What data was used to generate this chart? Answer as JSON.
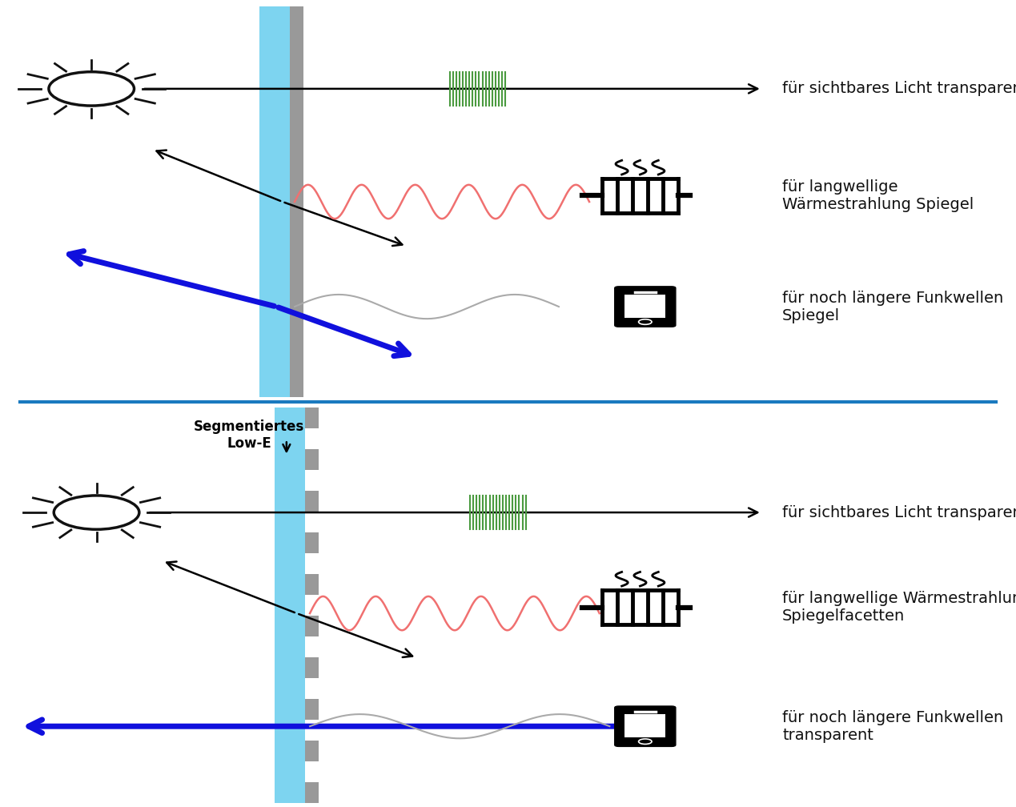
{
  "bg_color": "#ffffff",
  "divider_color": "#1a7abf",
  "glass_color": "#7dd4f0",
  "glass_edge_color": "#999999",
  "sun_color": "#111111",
  "wave_green_color": "#4a9a3f",
  "wave_red_color": "#f07070",
  "wave_gray_color": "#aaaaaa",
  "arrow_blue_color": "#1010dd",
  "text_color": "#111111",
  "label_sichtbar": "für sichtbares Licht transparent",
  "label_waerme1": "für langwellige\nWärmestrahlung Spiegel",
  "label_funk1": "für noch längere Funkwellen\nSpiegel",
  "label_sichtbar2": "für sichtbares Licht transparent",
  "label_waerme2": "für langwellige Wärmestrahlung\nSpiegelfacetten",
  "label_funk2": "für noch längere Funkwellen\ntransparent",
  "label_segmentiert": "Segmentiertes\nLow-E",
  "font_size_label": 14,
  "font_size_seg": 12
}
